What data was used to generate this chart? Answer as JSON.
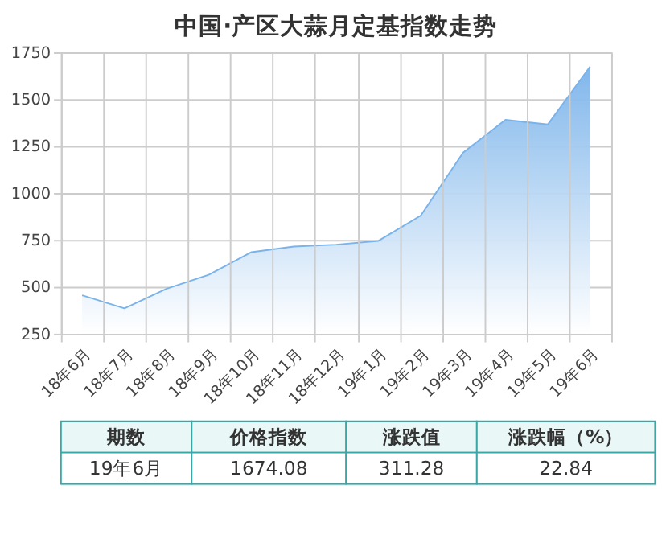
{
  "chart_data": {
    "type": "area",
    "title": "中国·产区大蒜月定基指数走势",
    "categories": [
      "18年6月",
      "18年7月",
      "18年8月",
      "18年9月",
      "18年10月",
      "18年11月",
      "18年12月",
      "19年1月",
      "19年2月",
      "19年3月",
      "19年4月",
      "19年5月",
      "19年6月"
    ],
    "series": [
      {
        "color": "#7ab3ea",
        "values": [
          455,
          385,
          490,
          565,
          685,
          715,
          725,
          745,
          880,
          1215,
          1390,
          1365,
          1674.08
        ]
      }
    ],
    "ylim": [
      250,
      1750
    ],
    "yticks": [
      250,
      500,
      750,
      1000,
      1250,
      1500,
      1750
    ],
    "grid": true,
    "annotations": [
      "期数",
      "价格指数",
      "涨跌值",
      "涨跌幅（%）",
      "19年6月",
      "1674.08",
      "311.28",
      "22.84"
    ]
  }
}
